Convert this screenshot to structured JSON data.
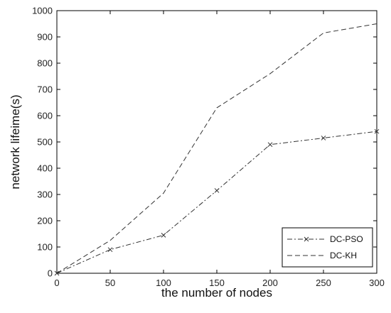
{
  "chart_data": {
    "type": "line",
    "title": "",
    "xlabel": "the number of nodes",
    "ylabel": "network lifeime(s)",
    "xlim": [
      0,
      300
    ],
    "ylim": [
      0,
      1000
    ],
    "x": [
      0,
      50,
      100,
      150,
      200,
      250,
      300
    ],
    "x_ticks": [
      "0",
      "50",
      "100",
      "150",
      "200",
      "250",
      "300"
    ],
    "y_ticks": [
      "0",
      "100",
      "200",
      "300",
      "400",
      "500",
      "600",
      "700",
      "800",
      "900",
      "1000"
    ],
    "grid": false,
    "legend_position": "bottom-right",
    "series": [
      {
        "name": "DC-PSO",
        "values": [
          0,
          90,
          145,
          315,
          490,
          515,
          540
        ],
        "marker": "x",
        "line_style": "dash-dot",
        "color": "#333333"
      },
      {
        "name": "DC-KH",
        "values": [
          0,
          125,
          305,
          630,
          760,
          915,
          950
        ],
        "marker": "none",
        "line_style": "dashed",
        "color": "#333333"
      }
    ]
  }
}
